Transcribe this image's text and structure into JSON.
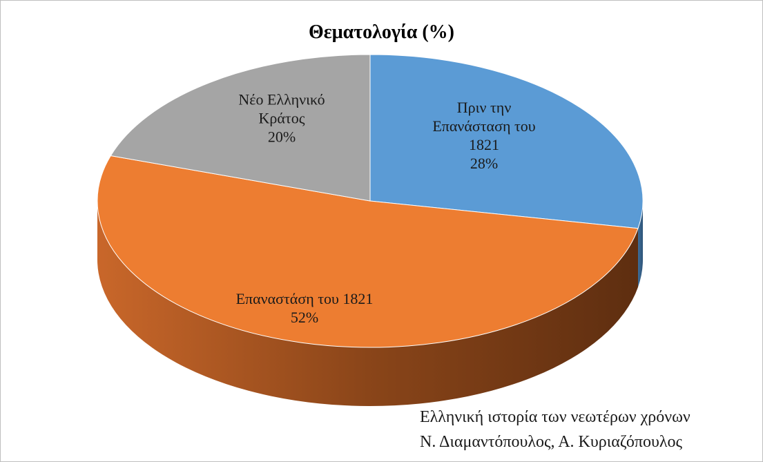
{
  "chart_data": {
    "type": "pie3d",
    "title": "Θεματολογία (%)",
    "categories": [
      "Πριν την Επανάσταση του 1821",
      "Επαναστάση του 1821",
      "Νέο Ελληνικό Κράτος"
    ],
    "values": [
      28,
      52,
      20
    ],
    "value_labels": [
      "28%",
      "52%",
      "20%"
    ],
    "colors": [
      "#5b9bd5",
      "#ed7d31",
      "#a5a5a5"
    ],
    "annotations": [
      "Ελληνική ιστορία των νεωτέρων χρόνων",
      "Ν. Διαμαντόπουλος, Α. Κυριαζόπουλος"
    ]
  }
}
